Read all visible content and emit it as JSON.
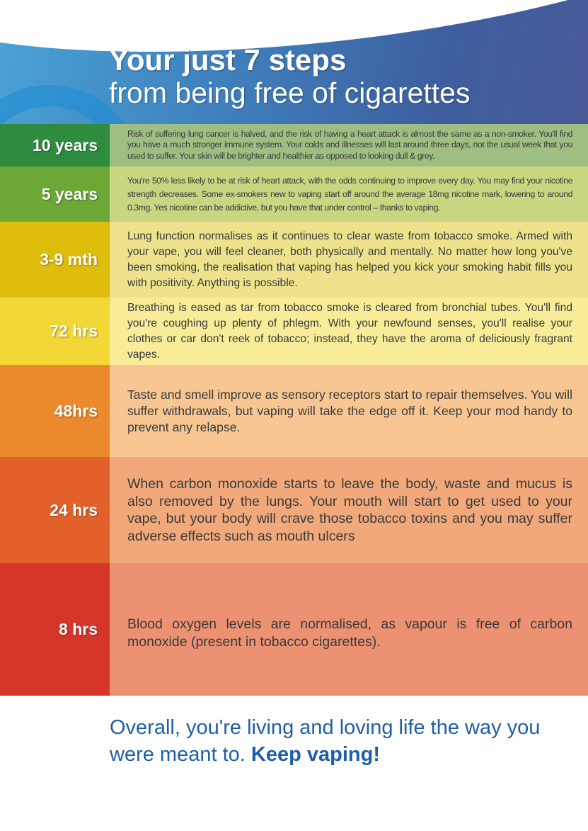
{
  "header": {
    "title_line1": "Your just 7 steps",
    "title_line2": "from being free of cigarettes"
  },
  "steps": [
    {
      "label": "10 years",
      "color": "#2f8c3f",
      "panel": "#9fbf82",
      "text": "Risk of suffering lung cancer is halved, and the risk of having a heart attack is almost the same as a non-smoker. You'll find you have a much stronger immune system. Your colds and illnesses will last around three days, not the usual week that you used to suffer. Your skin will be brighter and healthier as opposed to looking dull & grey."
    },
    {
      "label": "5 years",
      "color": "#6ca836",
      "panel": "#c9d580",
      "text": "You're 50% less likely to be at risk of heart attack, with the odds continuing to improve every day. You may find your nicotine strength decreases. Some ex-smokers new to vaping start off around the average 18mg nicotine mark, lowering to around 0.3mg. Yes nicotine can be addictive, but you have that under control – thanks to vaping."
    },
    {
      "label": "3-9 mth",
      "color": "#dfbd0c",
      "panel": "#efe28c",
      "text": "Lung function normalises as it continues to clear waste from tobacco smoke. Armed with your vape, you will feel cleaner, both physically and mentally. No matter how long you've been smoking, the realisation that vaping has helped you kick your smoking habit fills you with positivity. Anything is possible."
    },
    {
      "label": "72 hrs",
      "color": "#f3d737",
      "panel": "#f8ec98",
      "text": "Breathing is eased as tar from tobacco smoke is cleared from bronchial tubes. You'll find you're coughing up plenty of phlegm. With your newfound senses, you'll realise your clothes or car don't reek of tobacco; instead, they have the aroma of deliciously fragrant vapes."
    },
    {
      "label": "48hrs",
      "color": "#eb8a2c",
      "panel": "#f7c692",
      "text": "Taste and smell improve as sensory receptors start to repair themselves. You will suffer withdrawals, but vaping will take the edge off it. Keep your mod handy to prevent any relapse."
    },
    {
      "label": "24 hrs",
      "color": "#e2612b",
      "panel": "#f1a97c",
      "text": "When carbon monoxide starts to leave the body, waste and mucus is also removed by the lungs. Your mouth will start to get used to your vape, but your body will crave those tobacco toxins and you may suffer adverse effects such as mouth ulcers"
    },
    {
      "label": "8 hrs",
      "color": "#d6362a",
      "panel": "#ec9272",
      "text": "Blood oxygen levels are normalised, as vapour is free of carbon monoxide (present in tobacco cigarettes)."
    }
  ],
  "footer": {
    "text": "Overall, you're living and loving life the way you were meant to.",
    "emphasis": "Keep vaping!"
  }
}
